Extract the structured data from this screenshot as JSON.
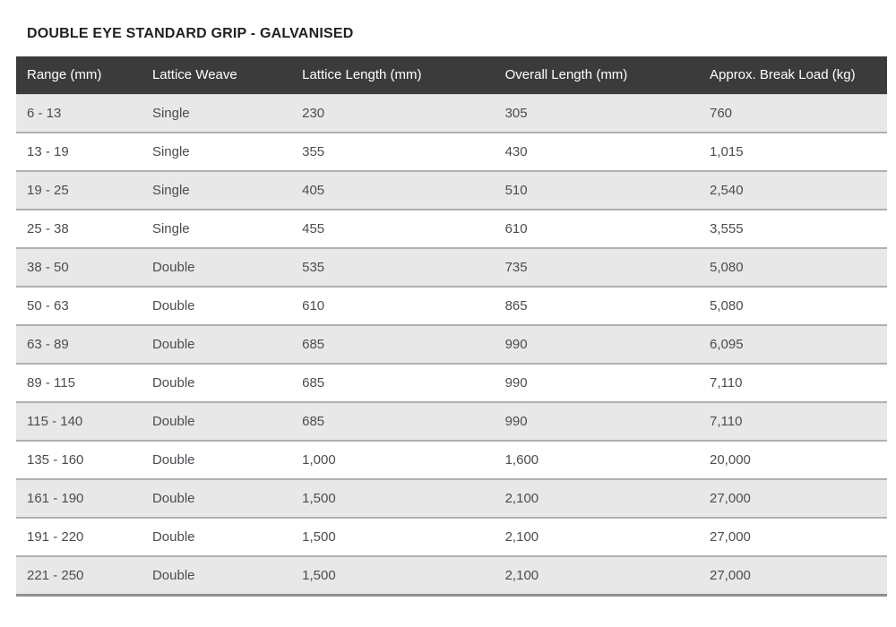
{
  "page": {
    "title": "DOUBLE EYE STANDARD GRIP - GALVANISED"
  },
  "theme": {
    "page_bg": "#ffffff",
    "title_text": "#231f20",
    "header_bg": "#3b3b3b",
    "header_text": "#ffffff",
    "row_bg": "#ffffff",
    "row_alt_bg": "#e8e8e8",
    "cell_text": "#4c4c52",
    "row_border": "#b0b0b0",
    "bottom_border": "#8f8f8f"
  },
  "chart_data": {
    "type": "table",
    "title": "DOUBLE EYE STANDARD GRIP - GALVANISED",
    "columns": [
      "Range (mm)",
      "Lattice Weave",
      "Lattice Length (mm)",
      "Overall Length (mm)",
      "Approx. Break Load (kg)"
    ],
    "rows": [
      [
        "6 - 13",
        "Single",
        "230",
        "305",
        "760"
      ],
      [
        "13 - 19",
        "Single",
        "355",
        "430",
        "1,015"
      ],
      [
        "19 - 25",
        "Single",
        "405",
        "510",
        "2,540"
      ],
      [
        "25 - 38",
        "Single",
        "455",
        "610",
        "3,555"
      ],
      [
        "38 - 50",
        "Double",
        "535",
        "735",
        "5,080"
      ],
      [
        "50 - 63",
        "Double",
        "610",
        "865",
        "5,080"
      ],
      [
        "63 - 89",
        "Double",
        "685",
        "990",
        "6,095"
      ],
      [
        "89 - 115",
        "Double",
        "685",
        "990",
        "7,110"
      ],
      [
        "115 - 140",
        "Double",
        "685",
        "990",
        "7,110"
      ],
      [
        "135 - 160",
        "Double",
        "1,000",
        "1,600",
        "20,000"
      ],
      [
        "161 - 190",
        "Double",
        "1,500",
        "2,100",
        "27,000"
      ],
      [
        "191 - 220",
        "Double",
        "1,500",
        "2,100",
        "27,000"
      ],
      [
        "221 - 250",
        "Double",
        "1,500",
        "2,100",
        "27,000"
      ]
    ]
  }
}
